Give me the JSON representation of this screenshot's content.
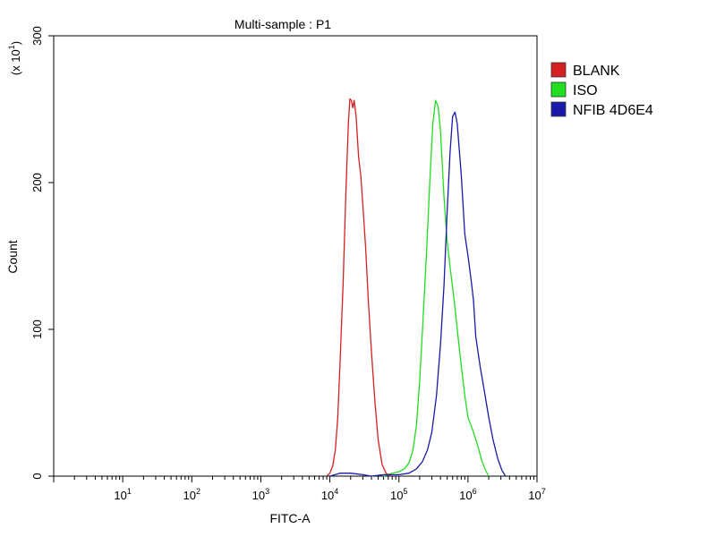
{
  "chart_data": {
    "type": "line",
    "title": "Multi-sample : P1",
    "xlabel": "FITC-A",
    "ylabel": "Count",
    "y_multiplier_label": {
      "base": "(x 10",
      "exp": "1",
      "close": ")"
    },
    "x_scale": "log",
    "xlim": [
      1,
      10000000
    ],
    "ylim": [
      0,
      300
    ],
    "x_ticks": [
      {
        "base": "10",
        "exp": "1",
        "value": 10
      },
      {
        "base": "10",
        "exp": "2",
        "value": 100
      },
      {
        "base": "10",
        "exp": "3",
        "value": 1000
      },
      {
        "base": "10",
        "exp": "4",
        "value": 10000
      },
      {
        "base": "10",
        "exp": "5",
        "value": 100000
      },
      {
        "base": "10",
        "exp": "6",
        "value": 1000000
      },
      {
        "base": "10",
        "exp": "7",
        "value": 10000000
      }
    ],
    "y_ticks": [
      {
        "label": "0",
        "value": 0
      },
      {
        "label": "100",
        "value": 100
      },
      {
        "label": "200",
        "value": 200
      },
      {
        "label": "300",
        "value": 300
      }
    ],
    "legend_position": "right",
    "series": [
      {
        "name": "BLANK",
        "color": "#d42020",
        "points": [
          [
            9000,
            0
          ],
          [
            10000,
            2
          ],
          [
            11000,
            7
          ],
          [
            12000,
            18
          ],
          [
            13000,
            40
          ],
          [
            14000,
            75
          ],
          [
            15500,
            130
          ],
          [
            17000,
            190
          ],
          [
            18500,
            240
          ],
          [
            19500,
            257
          ],
          [
            20500,
            256
          ],
          [
            21500,
            251
          ],
          [
            22500,
            256
          ],
          [
            24000,
            245
          ],
          [
            26000,
            218
          ],
          [
            28000,
            205
          ],
          [
            30000,
            185
          ],
          [
            33000,
            155
          ],
          [
            36000,
            120
          ],
          [
            40000,
            85
          ],
          [
            45000,
            50
          ],
          [
            50000,
            25
          ],
          [
            57000,
            8
          ],
          [
            65000,
            2
          ],
          [
            75000,
            0
          ]
        ]
      },
      {
        "name": "ISO",
        "color": "#22dd22",
        "points": [
          [
            60000,
            0
          ],
          [
            80000,
            2
          ],
          [
            100000,
            3
          ],
          [
            120000,
            5
          ],
          [
            140000,
            9
          ],
          [
            160000,
            18
          ],
          [
            180000,
            35
          ],
          [
            200000,
            65
          ],
          [
            220000,
            100
          ],
          [
            250000,
            150
          ],
          [
            280000,
            200
          ],
          [
            310000,
            240
          ],
          [
            340000,
            256
          ],
          [
            370000,
            252
          ],
          [
            400000,
            235
          ],
          [
            450000,
            190
          ],
          [
            500000,
            160
          ],
          [
            560000,
            140
          ],
          [
            630000,
            120
          ],
          [
            700000,
            100
          ],
          [
            800000,
            75
          ],
          [
            900000,
            55
          ],
          [
            1000000,
            40
          ],
          [
            1200000,
            30
          ],
          [
            1400000,
            20
          ],
          [
            1600000,
            10
          ],
          [
            1800000,
            4
          ],
          [
            2000000,
            0
          ]
        ]
      },
      {
        "name": "NFIB 4D6E4",
        "color": "#1a1aa8",
        "points": [
          [
            10000,
            0
          ],
          [
            14000,
            2
          ],
          [
            20000,
            2
          ],
          [
            30000,
            1
          ],
          [
            40000,
            0
          ],
          [
            60000,
            1
          ],
          [
            100000,
            1
          ],
          [
            140000,
            2
          ],
          [
            180000,
            5
          ],
          [
            220000,
            10
          ],
          [
            260000,
            18
          ],
          [
            300000,
            30
          ],
          [
            350000,
            55
          ],
          [
            400000,
            90
          ],
          [
            450000,
            130
          ],
          [
            500000,
            180
          ],
          [
            550000,
            220
          ],
          [
            600000,
            245
          ],
          [
            650000,
            248
          ],
          [
            700000,
            240
          ],
          [
            800000,
            205
          ],
          [
            900000,
            165
          ],
          [
            1000000,
            150
          ],
          [
            1100000,
            135
          ],
          [
            1200000,
            120
          ],
          [
            1300000,
            95
          ],
          [
            1500000,
            75
          ],
          [
            1700000,
            60
          ],
          [
            2000000,
            40
          ],
          [
            2300000,
            25
          ],
          [
            2700000,
            12
          ],
          [
            3100000,
            4
          ],
          [
            3500000,
            0
          ]
        ]
      }
    ]
  }
}
